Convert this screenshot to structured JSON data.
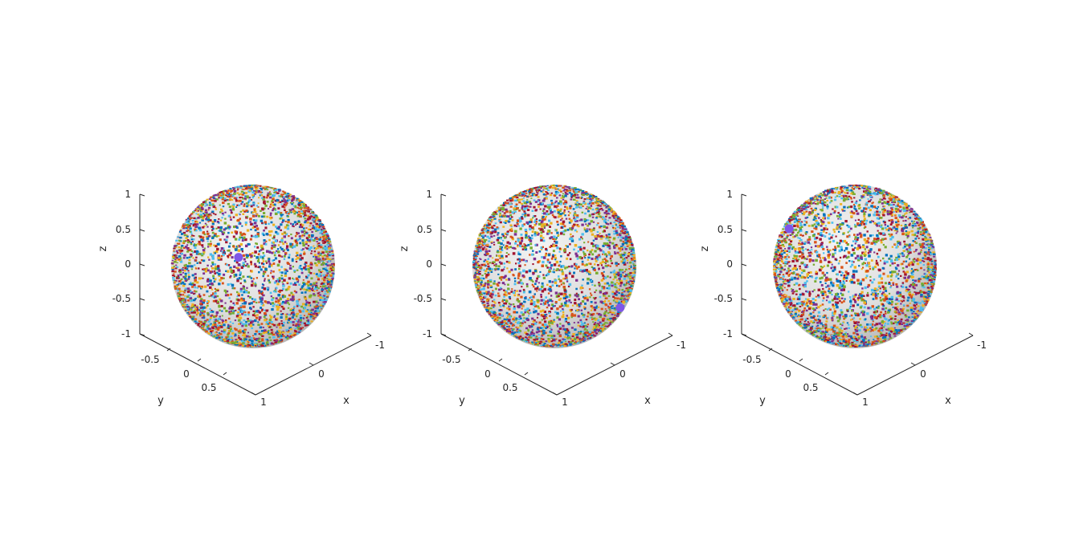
{
  "chart_data": [
    {
      "type": "scatter",
      "projection": "3d",
      "title": "",
      "xlabel": "x",
      "ylabel": "y",
      "zlabel": "z",
      "xlim": [
        -1,
        1
      ],
      "ylim": [
        -1,
        1
      ],
      "zlim": [
        -1,
        1
      ],
      "x_ticks": [
        "-1",
        "0",
        "1"
      ],
      "y_ticks": [
        "-0.5",
        "0",
        "0.5"
      ],
      "z_ticks": [
        "1",
        "0.5",
        "0",
        "-0.5",
        "-1"
      ],
      "grid": false,
      "surface": "unit sphere (light gray, shaded)",
      "background_points": "thousands of small multicolored markers distributed uniformly on the unit sphere",
      "highlight_point": {
        "x": 0.3,
        "y": 0.1,
        "z": 0.28,
        "color": "#7e57e8"
      }
    },
    {
      "type": "scatter",
      "projection": "3d",
      "title": "",
      "xlabel": "x",
      "ylabel": "y",
      "zlabel": "z",
      "xlim": [
        -1,
        1
      ],
      "ylim": [
        -1,
        1
      ],
      "zlim": [
        -1,
        1
      ],
      "x_ticks": [
        "-1",
        "0",
        "1"
      ],
      "y_ticks": [
        "-0.5",
        "0",
        "0.5"
      ],
      "z_ticks": [
        "1",
        "0.5",
        "0",
        "-0.5",
        "-1"
      ],
      "grid": false,
      "surface": "unit sphere (light gray, shaded)",
      "background_points": "thousands of small multicolored markers distributed uniformly on the unit sphere",
      "highlight_point": {
        "x": -0.55,
        "y": 0.6,
        "z": -0.5,
        "color": "#7e57e8"
      }
    },
    {
      "type": "scatter",
      "projection": "3d",
      "title": "",
      "xlabel": "x",
      "ylabel": "y",
      "zlabel": "z",
      "xlim": [
        -1,
        1
      ],
      "ylim": [
        -1,
        1
      ],
      "zlim": [
        -1,
        1
      ],
      "x_ticks": [
        "-1",
        "0",
        "1"
      ],
      "y_ticks": [
        "-0.5",
        "0",
        "0.5"
      ],
      "z_ticks": [
        "1",
        "0.5",
        "0",
        "-0.5",
        "-1"
      ],
      "grid": false,
      "surface": "unit sphere (light gray, shaded)",
      "background_points": "thousands of small multicolored markers distributed uniformly on the unit sphere",
      "highlight_point": {
        "x": 0.55,
        "y": -0.6,
        "z": 0.45,
        "color": "#7e57e8"
      }
    }
  ],
  "colors": {
    "axis": "#262626",
    "sphere_light": "#f2f2f2",
    "sphere_mid": "#d9d9d9",
    "sphere_dark": "#b3b3b3",
    "highlight": "#7e57e8",
    "palette": [
      "#0072bd",
      "#d95319",
      "#edb120",
      "#7e2f8e",
      "#77ac30",
      "#4dbeee",
      "#a2142f"
    ]
  }
}
